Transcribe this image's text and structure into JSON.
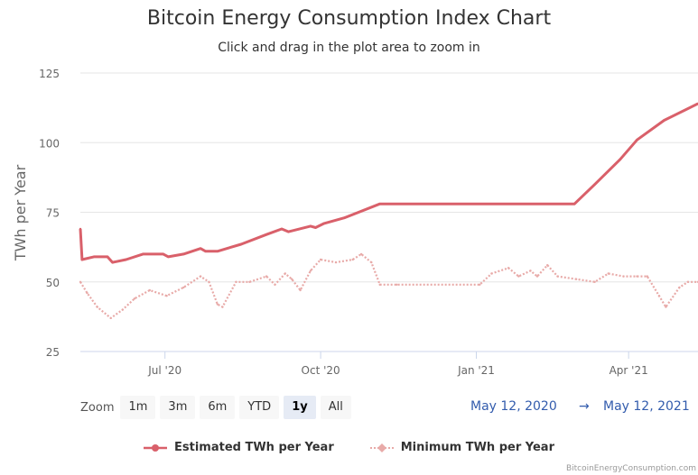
{
  "title": "Bitcoin Energy Consumption Index Chart",
  "subtitle": "Click and drag in the plot area to zoom in",
  "zoom": {
    "label": "Zoom",
    "buttons": [
      "1m",
      "3m",
      "6m",
      "YTD",
      "1y",
      "All"
    ],
    "active": "1y"
  },
  "range": {
    "from": "May 12, 2020",
    "arrow": "→",
    "to": "May 12, 2021"
  },
  "credit": "BitcoinEnergyConsumption.com",
  "colors": {
    "estimated": "#d9606a",
    "minimum": "#e8aaa8",
    "grid": "#e6e6e6"
  },
  "chart_data": {
    "type": "line",
    "ylabel": "TWh per Year",
    "ylim": [
      25,
      125
    ],
    "yticks": [
      25,
      50,
      75,
      100,
      125
    ],
    "xlim": [
      "2020-05-12",
      "2021-05-12"
    ],
    "xticks": [
      {
        "label": "Jul '20",
        "date": "2020-07-01"
      },
      {
        "label": "Oct '20",
        "date": "2020-10-01"
      },
      {
        "label": "Jan '21",
        "date": "2021-01-01"
      },
      {
        "label": "Apr '21",
        "date": "2021-04-01"
      }
    ],
    "series": [
      {
        "name": "Estimated TWh per Year",
        "marker": "circle",
        "points": [
          [
            "2020-05-12",
            69
          ],
          [
            "2020-05-13",
            58
          ],
          [
            "2020-05-20",
            59
          ],
          [
            "2020-05-28",
            59
          ],
          [
            "2020-05-31",
            57
          ],
          [
            "2020-06-08",
            58
          ],
          [
            "2020-06-18",
            60
          ],
          [
            "2020-06-25",
            60
          ],
          [
            "2020-06-30",
            60
          ],
          [
            "2020-07-03",
            59
          ],
          [
            "2020-07-12",
            60
          ],
          [
            "2020-07-22",
            62
          ],
          [
            "2020-07-25",
            61
          ],
          [
            "2020-08-01",
            61
          ],
          [
            "2020-08-15",
            63.5
          ],
          [
            "2020-08-30",
            67
          ],
          [
            "2020-09-08",
            69
          ],
          [
            "2020-09-12",
            68
          ],
          [
            "2020-09-25",
            70
          ],
          [
            "2020-09-28",
            69.5
          ],
          [
            "2020-10-03",
            71
          ],
          [
            "2020-10-15",
            73
          ],
          [
            "2020-11-05",
            78
          ],
          [
            "2021-02-28",
            78
          ],
          [
            "2021-03-12",
            85
          ],
          [
            "2021-03-27",
            94
          ],
          [
            "2021-04-06",
            101
          ],
          [
            "2021-04-22",
            108
          ],
          [
            "2021-05-12",
            114
          ]
        ]
      },
      {
        "name": "Minimum TWh per Year",
        "marker": "diamond",
        "points": [
          [
            "2020-05-12",
            50
          ],
          [
            "2020-05-16",
            46
          ],
          [
            "2020-05-22",
            41
          ],
          [
            "2020-05-30",
            37
          ],
          [
            "2020-06-06",
            40
          ],
          [
            "2020-06-13",
            44
          ],
          [
            "2020-06-22",
            47
          ],
          [
            "2020-07-02",
            45
          ],
          [
            "2020-07-12",
            48
          ],
          [
            "2020-07-22",
            52
          ],
          [
            "2020-07-27",
            50
          ],
          [
            "2020-08-01",
            42
          ],
          [
            "2020-08-04",
            41
          ],
          [
            "2020-08-12",
            50
          ],
          [
            "2020-08-20",
            50
          ],
          [
            "2020-08-30",
            52
          ],
          [
            "2020-09-04",
            49
          ],
          [
            "2020-09-10",
            53
          ],
          [
            "2020-09-14",
            51
          ],
          [
            "2020-09-19",
            47
          ],
          [
            "2020-09-25",
            54
          ],
          [
            "2020-10-01",
            58
          ],
          [
            "2020-10-10",
            57
          ],
          [
            "2020-10-20",
            58
          ],
          [
            "2020-10-25",
            60
          ],
          [
            "2020-10-31",
            57
          ],
          [
            "2020-11-05",
            49
          ],
          [
            "2020-11-15",
            49
          ],
          [
            "2021-01-03",
            49
          ],
          [
            "2021-01-10",
            53
          ],
          [
            "2021-01-20",
            55
          ],
          [
            "2021-01-26",
            52
          ],
          [
            "2021-02-02",
            54
          ],
          [
            "2021-02-06",
            52
          ],
          [
            "2021-02-12",
            56
          ],
          [
            "2021-02-18",
            52
          ],
          [
            "2021-03-01",
            51
          ],
          [
            "2021-03-12",
            50
          ],
          [
            "2021-03-20",
            53
          ],
          [
            "2021-03-29",
            52
          ],
          [
            "2021-04-06",
            52
          ],
          [
            "2021-04-12",
            52
          ],
          [
            "2021-04-19",
            45
          ],
          [
            "2021-04-23",
            41
          ],
          [
            "2021-05-01",
            48
          ],
          [
            "2021-05-06",
            50
          ],
          [
            "2021-05-12",
            50
          ]
        ]
      }
    ]
  }
}
